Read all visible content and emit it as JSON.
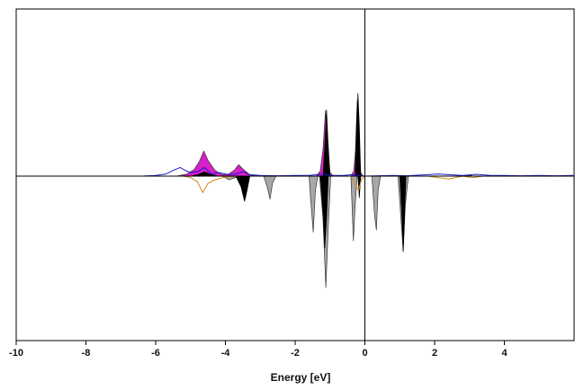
{
  "chart_data": {
    "type": "area",
    "title": "",
    "xlabel": "Energy [eV]",
    "ylabel": "",
    "xlim": [
      -10,
      6
    ],
    "ylim": [
      -1.0,
      1.0
    ],
    "x_ticks": [
      -10,
      -8,
      -6,
      -4,
      -2,
      0,
      2,
      4
    ],
    "x_tick_labels": [
      "-10",
      "-8",
      "-6",
      "-4",
      "-2",
      "0",
      "2",
      "4"
    ],
    "fermi_level": 0,
    "grid": false,
    "legend": "none",
    "colors": {
      "magenta": "#d81fc8",
      "black": "#000000",
      "gray": "#a8a8a8",
      "blue": "#1a1acc",
      "orange": "#d08a1c",
      "outline": "#333333",
      "axis": "#000000"
    },
    "spin_up": {
      "blue_line": [
        [
          -6.4,
          0
        ],
        [
          -6.0,
          0.01
        ],
        [
          -5.7,
          0.03
        ],
        [
          -5.45,
          0.09
        ],
        [
          -5.3,
          0.12
        ],
        [
          -5.15,
          0.08
        ],
        [
          -5.0,
          0.05
        ],
        [
          -4.8,
          0.06
        ],
        [
          -4.6,
          0.12
        ],
        [
          -4.4,
          0.03
        ],
        [
          -4.2,
          0.05
        ],
        [
          -3.9,
          0.02
        ],
        [
          -3.7,
          0.03
        ],
        [
          -3.5,
          0.06
        ],
        [
          -3.3,
          0.02
        ],
        [
          -3.0,
          0.01
        ],
        [
          -2.5,
          0.005
        ],
        [
          -2.0,
          0.01
        ],
        [
          -1.6,
          0.01
        ],
        [
          -1.4,
          0.02
        ],
        [
          -1.2,
          0.03
        ],
        [
          -1.0,
          0.01
        ],
        [
          -0.6,
          0.01
        ],
        [
          -0.4,
          0.02
        ],
        [
          0,
          0
        ],
        [
          0.4,
          0.005
        ],
        [
          0.8,
          0.01
        ],
        [
          1.2,
          0.005
        ],
        [
          1.8,
          0.02
        ],
        [
          2.1,
          0.03
        ],
        [
          2.4,
          0.02
        ],
        [
          2.8,
          0.01
        ],
        [
          3.2,
          0.025
        ],
        [
          3.6,
          0.01
        ],
        [
          4.0,
          0.01
        ],
        [
          4.5,
          0.005
        ],
        [
          5.0,
          0.01
        ],
        [
          5.5,
          0.005
        ],
        [
          6.0,
          0.01
        ]
      ],
      "magenta_fill": [
        [
          -5.4,
          0
        ],
        [
          -5.1,
          0.03
        ],
        [
          -4.9,
          0.09
        ],
        [
          -4.75,
          0.2
        ],
        [
          -4.62,
          0.35
        ],
        [
          -4.5,
          0.22
        ],
        [
          -4.3,
          0.08
        ],
        [
          -4.1,
          0.02
        ],
        [
          -3.9,
          0.03
        ],
        [
          -3.75,
          0.08
        ],
        [
          -3.62,
          0.16
        ],
        [
          -3.5,
          0.1
        ],
        [
          -3.3,
          0.02
        ],
        [
          -3.1,
          0
        ],
        [
          -1.4,
          0
        ],
        [
          -1.28,
          0.07
        ],
        [
          -1.2,
          0.38
        ],
        [
          -1.13,
          0.91
        ],
        [
          -1.07,
          0.38
        ],
        [
          -1.0,
          0.05
        ],
        [
          -0.9,
          0
        ],
        [
          -0.4,
          0
        ],
        [
          -0.32,
          0.07
        ],
        [
          -0.27,
          0.35
        ],
        [
          -0.22,
          1.05
        ],
        [
          -0.17,
          0.32
        ],
        [
          -0.12,
          0.05
        ],
        [
          -0.05,
          0
        ],
        [
          2.9,
          0
        ],
        [
          3.0,
          0.02
        ],
        [
          3.1,
          0
        ]
      ],
      "black_fill": [
        [
          -5.0,
          0
        ],
        [
          -4.8,
          0.02
        ],
        [
          -4.6,
          0.06
        ],
        [
          -4.4,
          0.02
        ],
        [
          -4.2,
          0
        ],
        [
          -1.2,
          0
        ],
        [
          -1.14,
          0.5
        ],
        [
          -1.1,
          0.92
        ],
        [
          -1.06,
          0.5
        ],
        [
          -1.0,
          0
        ],
        [
          -0.28,
          0
        ],
        [
          -0.24,
          0.7
        ],
        [
          -0.2,
          1.15
        ],
        [
          -0.16,
          0.7
        ],
        [
          -0.12,
          0
        ]
      ]
    },
    "spin_down": {
      "black_fill": [
        [
          -3.7,
          0
        ],
        [
          -3.55,
          -0.15
        ],
        [
          -3.45,
          -0.35
        ],
        [
          -3.38,
          -0.2
        ],
        [
          -3.3,
          0
        ],
        [
          -1.28,
          0
        ],
        [
          -1.2,
          -0.5
        ],
        [
          -1.15,
          -1.0
        ],
        [
          -1.1,
          -0.6
        ],
        [
          -1.05,
          0
        ],
        [
          -0.2,
          0
        ],
        [
          -0.16,
          -0.3
        ],
        [
          -0.12,
          0
        ],
        [
          1.0,
          0
        ],
        [
          1.06,
          -0.55
        ],
        [
          1.1,
          -1.05
        ],
        [
          1.14,
          -0.5
        ],
        [
          1.18,
          0
        ]
      ],
      "gray_fill": [
        [
          -4.1,
          0
        ],
        [
          -3.9,
          -0.05
        ],
        [
          -3.7,
          -0.02
        ],
        [
          -3.5,
          0
        ],
        [
          -2.9,
          0
        ],
        [
          -2.8,
          -0.15
        ],
        [
          -2.72,
          -0.32
        ],
        [
          -2.65,
          -0.1
        ],
        [
          -2.55,
          0
        ],
        [
          -1.6,
          0
        ],
        [
          -1.55,
          -0.35
        ],
        [
          -1.48,
          -0.78
        ],
        [
          -1.42,
          -0.2
        ],
        [
          -1.35,
          0
        ],
        [
          -1.3,
          0
        ],
        [
          -1.2,
          -0.6
        ],
        [
          -1.12,
          -1.55
        ],
        [
          -1.05,
          -0.7
        ],
        [
          -0.98,
          0
        ],
        [
          -0.4,
          0
        ],
        [
          -0.33,
          -0.9
        ],
        [
          -0.28,
          -0.4
        ],
        [
          -0.22,
          0
        ],
        [
          0.2,
          0
        ],
        [
          0.28,
          -0.55
        ],
        [
          0.33,
          -0.75
        ],
        [
          0.38,
          -0.2
        ],
        [
          0.45,
          0
        ],
        [
          0.95,
          0
        ],
        [
          1.05,
          -0.7
        ],
        [
          1.1,
          -1.05
        ],
        [
          1.16,
          -0.4
        ],
        [
          1.25,
          0
        ]
      ],
      "orange_line": [
        [
          -5.2,
          0
        ],
        [
          -5.0,
          -0.02
        ],
        [
          -4.8,
          -0.08
        ],
        [
          -4.65,
          -0.23
        ],
        [
          -4.5,
          -0.1
        ],
        [
          -4.3,
          -0.05
        ],
        [
          -4.0,
          -0.01
        ],
        [
          -3.6,
          0
        ],
        [
          -0.4,
          0
        ],
        [
          -0.25,
          -0.14
        ],
        [
          -0.18,
          -0.2
        ],
        [
          -0.1,
          -0.05
        ],
        [
          0,
          0
        ],
        [
          1.8,
          0
        ],
        [
          2.4,
          -0.04
        ],
        [
          2.8,
          0
        ],
        [
          3.1,
          -0.02
        ],
        [
          3.4,
          0
        ]
      ]
    }
  }
}
